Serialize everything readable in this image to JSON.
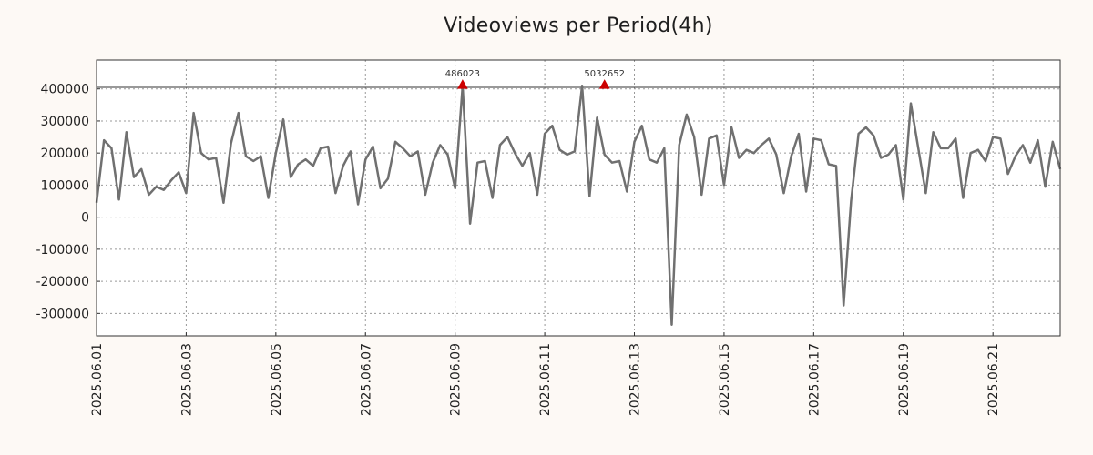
{
  "chart_data": {
    "type": "line",
    "title": "Videoviews per Period(4h)",
    "xlabel": "",
    "ylabel": "",
    "grid": true,
    "colors": {
      "background": "#fdf9f5",
      "plot_background": "#ffffff",
      "line": "#707070",
      "marker": "#cc0000",
      "threshold": "#333333",
      "grid": "#999999"
    },
    "ylim": [
      -370000,
      490000
    ],
    "xlim": [
      "2025-06-01 00:00",
      "2025-06-22 12:00"
    ],
    "y_ticks": [
      {
        "value": 400000,
        "label": "400000"
      },
      {
        "value": 300000,
        "label": "300000"
      },
      {
        "value": 200000,
        "label": "200000"
      },
      {
        "value": 100000,
        "label": "100000"
      },
      {
        "value": 0,
        "label": "0"
      },
      {
        "value": -100000,
        "label": "-100000"
      },
      {
        "value": -200000,
        "label": "-200000"
      },
      {
        "value": -300000,
        "label": "-300000"
      }
    ],
    "x_ticks": [
      {
        "value": "2025-06-01",
        "label": "2025.06.01"
      },
      {
        "value": "2025-06-03",
        "label": "2025.06.03"
      },
      {
        "value": "2025-06-05",
        "label": "2025.06.05"
      },
      {
        "value": "2025-06-07",
        "label": "2025.06.07"
      },
      {
        "value": "2025-06-09",
        "label": "2025.06.09"
      },
      {
        "value": "2025-06-11",
        "label": "2025.06.11"
      },
      {
        "value": "2025-06-13",
        "label": "2025.06.13"
      },
      {
        "value": "2025-06-15",
        "label": "2025.06.15"
      },
      {
        "value": "2025-06-17",
        "label": "2025.06.17"
      },
      {
        "value": "2025-06-19",
        "label": "2025.06.19"
      },
      {
        "value": "2025-06-21",
        "label": "2025.06.21"
      }
    ],
    "threshold_value": 405000,
    "series": [
      {
        "x": [
          "2025-06-01 00:00",
          "2025-06-01 04:00",
          "2025-06-01 08:00",
          "2025-06-01 12:00",
          "2025-06-01 16:00",
          "2025-06-01 20:00",
          "2025-06-02 00:00",
          "2025-06-02 04:00",
          "2025-06-02 08:00",
          "2025-06-02 12:00",
          "2025-06-02 16:00",
          "2025-06-02 20:00",
          "2025-06-03 00:00",
          "2025-06-03 04:00",
          "2025-06-03 08:00",
          "2025-06-03 12:00",
          "2025-06-03 16:00",
          "2025-06-03 20:00",
          "2025-06-04 00:00",
          "2025-06-04 04:00",
          "2025-06-04 08:00",
          "2025-06-04 12:00",
          "2025-06-04 16:00",
          "2025-06-04 20:00",
          "2025-06-05 00:00",
          "2025-06-05 04:00",
          "2025-06-05 08:00",
          "2025-06-05 12:00",
          "2025-06-05 16:00",
          "2025-06-05 20:00",
          "2025-06-06 00:00",
          "2025-06-06 04:00",
          "2025-06-06 08:00",
          "2025-06-06 12:00",
          "2025-06-06 16:00",
          "2025-06-06 20:00",
          "2025-06-07 00:00",
          "2025-06-07 04:00",
          "2025-06-07 08:00",
          "2025-06-07 12:00",
          "2025-06-07 16:00",
          "2025-06-07 20:00",
          "2025-06-08 00:00",
          "2025-06-08 04:00",
          "2025-06-08 08:00",
          "2025-06-08 12:00",
          "2025-06-08 16:00",
          "2025-06-08 20:00",
          "2025-06-09 00:00",
          "2025-06-09 04:00",
          "2025-06-09 08:00",
          "2025-06-09 12:00",
          "2025-06-09 16:00",
          "2025-06-09 20:00",
          "2025-06-10 00:00",
          "2025-06-10 04:00",
          "2025-06-10 08:00",
          "2025-06-10 12:00",
          "2025-06-10 16:00",
          "2025-06-10 20:00",
          "2025-06-11 00:00",
          "2025-06-11 04:00",
          "2025-06-11 08:00",
          "2025-06-11 12:00",
          "2025-06-11 16:00",
          "2025-06-11 20:00",
          "2025-06-12 00:00",
          "2025-06-12 04:00",
          "2025-06-12 08:00",
          "2025-06-12 12:00",
          "2025-06-12 16:00",
          "2025-06-12 20:00",
          "2025-06-13 00:00",
          "2025-06-13 04:00",
          "2025-06-13 08:00",
          "2025-06-13 12:00",
          "2025-06-13 16:00",
          "2025-06-13 20:00",
          "2025-06-14 00:00",
          "2025-06-14 04:00",
          "2025-06-14 08:00",
          "2025-06-14 12:00",
          "2025-06-14 16:00",
          "2025-06-14 20:00",
          "2025-06-15 00:00",
          "2025-06-15 04:00",
          "2025-06-15 08:00",
          "2025-06-15 12:00",
          "2025-06-15 16:00",
          "2025-06-15 20:00",
          "2025-06-16 00:00",
          "2025-06-16 04:00",
          "2025-06-16 08:00",
          "2025-06-16 12:00",
          "2025-06-16 16:00",
          "2025-06-16 20:00",
          "2025-06-17 00:00",
          "2025-06-17 04:00",
          "2025-06-17 08:00",
          "2025-06-17 12:00",
          "2025-06-17 16:00",
          "2025-06-17 20:00",
          "2025-06-18 00:00",
          "2025-06-18 04:00",
          "2025-06-18 08:00",
          "2025-06-18 12:00",
          "2025-06-18 16:00",
          "2025-06-18 20:00",
          "2025-06-19 00:00",
          "2025-06-19 04:00",
          "2025-06-19 08:00",
          "2025-06-19 12:00",
          "2025-06-19 16:00",
          "2025-06-19 20:00",
          "2025-06-20 00:00",
          "2025-06-20 04:00",
          "2025-06-20 08:00",
          "2025-06-20 12:00",
          "2025-06-20 16:00",
          "2025-06-20 20:00",
          "2025-06-21 00:00",
          "2025-06-21 04:00",
          "2025-06-21 08:00",
          "2025-06-21 12:00",
          "2025-06-21 16:00",
          "2025-06-21 20:00",
          "2025-06-22 00:00",
          "2025-06-22 04:00",
          "2025-06-22 08:00",
          "2025-06-22 12:00"
        ],
        "y": [
          45000,
          240000,
          215000,
          55000,
          265000,
          125000,
          150000,
          70000,
          95000,
          85000,
          115000,
          140000,
          75000,
          325000,
          200000,
          180000,
          185000,
          45000,
          230000,
          325000,
          190000,
          175000,
          190000,
          60000,
          200000,
          305000,
          125000,
          165000,
          180000,
          160000,
          215000,
          220000,
          75000,
          160000,
          205000,
          40000,
          180000,
          220000,
          90000,
          120000,
          235000,
          215000,
          190000,
          205000,
          70000,
          170000,
          225000,
          195000,
          90000,
          410000,
          -20000,
          170000,
          175000,
          60000,
          225000,
          250000,
          200000,
          160000,
          200000,
          70000,
          260000,
          285000,
          210000,
          195000,
          205000,
          410000,
          65000,
          310000,
          195000,
          170000,
          175000,
          80000,
          235000,
          285000,
          180000,
          170000,
          215000,
          -335000,
          225000,
          320000,
          250000,
          70000,
          245000,
          255000,
          100000,
          280000,
          185000,
          210000,
          200000,
          225000,
          245000,
          195000,
          75000,
          190000,
          260000,
          80000,
          245000,
          240000,
          165000,
          160000,
          -275000,
          50000,
          260000,
          280000,
          255000,
          185000,
          195000,
          225000,
          55000,
          355000,
          215000,
          75000,
          265000,
          215000,
          215000,
          245000,
          60000,
          200000,
          210000,
          175000,
          250000,
          245000,
          135000,
          190000,
          225000,
          170000,
          240000,
          95000,
          235000,
          150000
        ]
      }
    ],
    "annotations": [
      {
        "x": "2025-06-09 04:00",
        "y": 410000,
        "label": "486023"
      },
      {
        "x": "2025-06-12 08:00",
        "y": 410000,
        "label": "5032652"
      }
    ]
  }
}
